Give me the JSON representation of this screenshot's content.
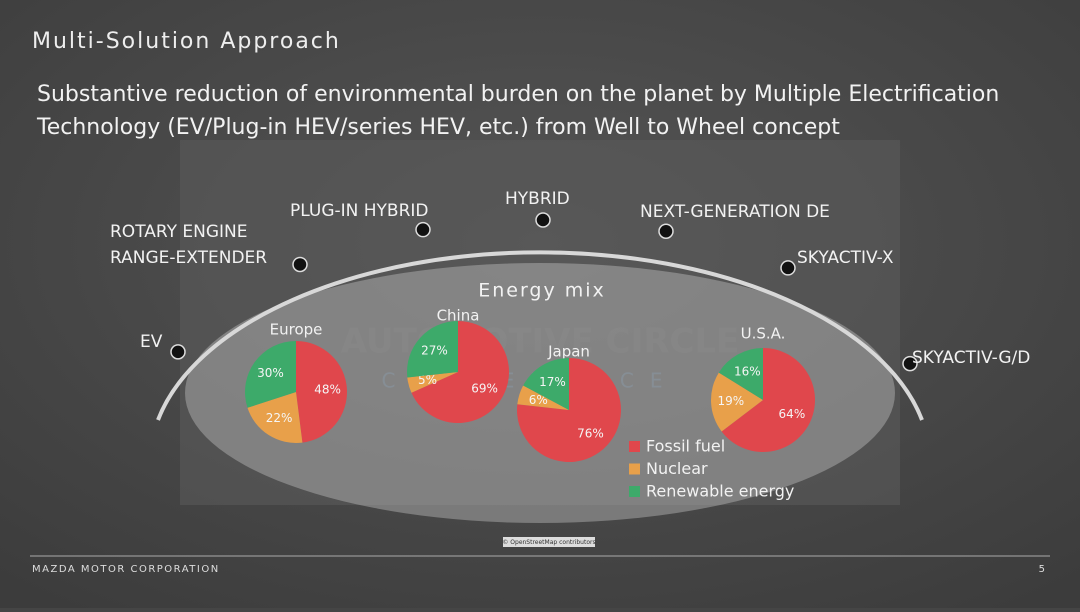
{
  "slide": {
    "title": "Multi-Solution Approach",
    "subtitle": [
      "Substantive reduction of environmental burden on the planet by Multiple Electrification",
      "Technology (EV/Plug-in HEV/series HEV, etc.) from Well to Wheel concept"
    ],
    "arc_labels": [
      [
        "EV"
      ],
      [
        "ROTARY ENGINE",
        "RANGE-EXTENDER"
      ],
      [
        "PLUG-IN HYBRID"
      ],
      [
        "HYBRID"
      ],
      [
        "NEXT-GENERATION DE"
      ],
      [
        "SKYACTIV-X"
      ],
      [
        "SKYACTIV-G/D"
      ]
    ],
    "energy_mix": "Energy mix",
    "watermark": [
      "AUTOMOTIVE CIRCLE",
      "CONFERENCE"
    ],
    "map_credit": "© OpenStreetMap contributors",
    "footer": "MAZDA MOTOR CORPORATION",
    "page": "5"
  },
  "chart_data": [
    {
      "type": "pie",
      "title": "Europe",
      "categories": [
        "Fossil fuel",
        "Nuclear",
        "Renewable energy"
      ],
      "colors": [
        "#e0474c",
        "#e8a04a",
        "#3daa6a"
      ],
      "values": [
        48,
        22,
        30
      ],
      "value_labels": [
        "48%",
        "22%",
        "30%"
      ]
    },
    {
      "type": "pie",
      "title": "China",
      "categories": [
        "Fossil fuel",
        "Nuclear",
        "Renewable energy"
      ],
      "colors": [
        "#e0474c",
        "#e8a04a",
        "#3daa6a"
      ],
      "values": [
        69,
        5,
        27
      ],
      "value_labels": [
        "69%",
        "5%",
        "27%"
      ]
    },
    {
      "type": "pie",
      "title": "Japan",
      "categories": [
        "Fossil fuel",
        "Nuclear",
        "Renewable energy"
      ],
      "colors": [
        "#e0474c",
        "#e8a04a",
        "#3daa6a"
      ],
      "values": [
        76,
        6,
        17
      ],
      "value_labels": [
        "76%",
        "6%",
        "17%"
      ]
    },
    {
      "type": "pie",
      "title": "U.S.A.",
      "categories": [
        "Fossil fuel",
        "Nuclear",
        "Renewable energy"
      ],
      "colors": [
        "#e0474c",
        "#e8a04a",
        "#3daa6a"
      ],
      "values": [
        64,
        19,
        16
      ],
      "value_labels": [
        "64%",
        "19%",
        "16%"
      ]
    }
  ]
}
